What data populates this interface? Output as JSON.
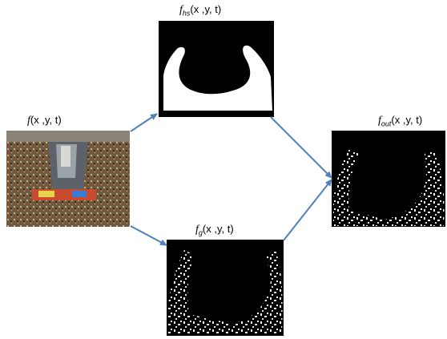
{
  "nodes": {
    "input": {
      "fn": "f",
      "sub": "",
      "args": "(x ,y, t)"
    },
    "top": {
      "fn": "f",
      "sub": "hs",
      "args": "(x ,y, t)"
    },
    "bottom": {
      "fn": "f",
      "sub": "g",
      "args": "(x ,y, t)"
    },
    "output": {
      "fn": "f",
      "sub": "out",
      "args": "(x ,y, t)"
    }
  },
  "colors": {
    "arrow": "#4f81bd",
    "mask": "#000000",
    "fg": "#ffffff"
  }
}
